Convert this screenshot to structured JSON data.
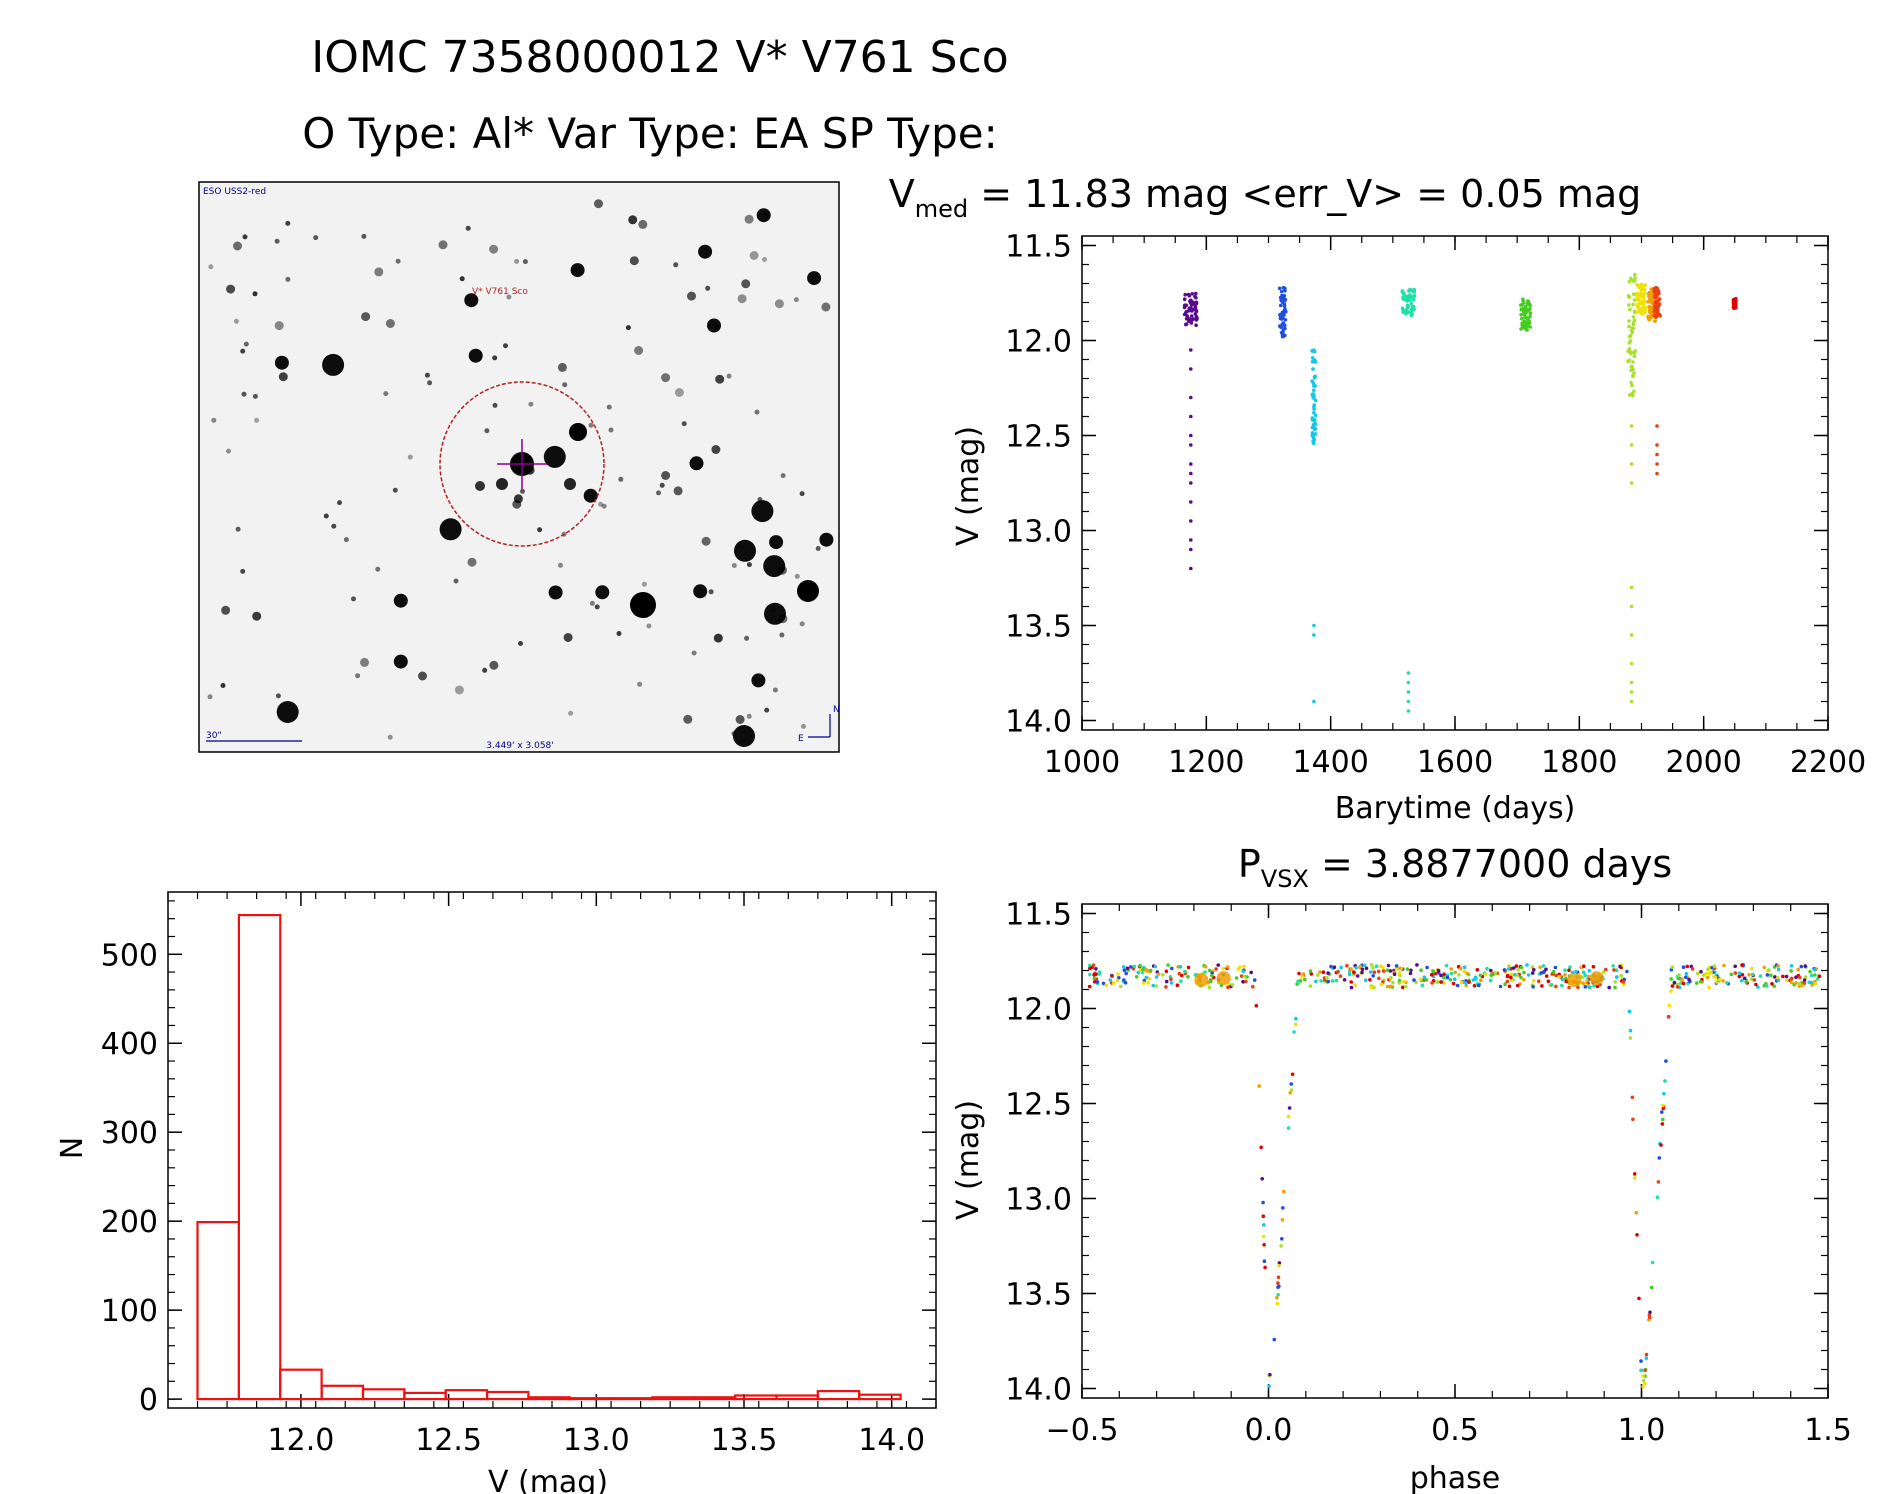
{
  "header": {
    "line1": "IOMC 7358000012   V* V761 Sco",
    "line2": "O Type: Al*  Var Type: EA  SP Type:"
  },
  "image_panel": {
    "survey_label": "ESO USS2-red",
    "target_label": "V* V761 Sco",
    "scale_label": "30\"",
    "fov_label": "3.449' x 3.058'",
    "north_label": "N",
    "east_label": "E",
    "colors": {
      "star": "#000000",
      "circle": "#b22222",
      "cross": "#8b008b",
      "annotation": "#00008b"
    }
  },
  "chart_data": [
    {
      "id": "light_curve",
      "type": "scatter",
      "title_main": "V",
      "title_sub": "med",
      "title_rest": " = 11.83 mag <err_V> = 0.05 mag",
      "xlabel": "Barytime (days)",
      "ylabel": "V (mag)",
      "xlim": [
        1000,
        2200
      ],
      "ylim": [
        14.05,
        11.45
      ],
      "xticks": [
        1000,
        1200,
        1400,
        1600,
        1800,
        2000,
        2200
      ],
      "yticks": [
        11.5,
        12.0,
        12.5,
        13.0,
        13.5,
        14.0
      ],
      "groups": [
        {
          "x": [
            1165,
            1185
          ],
          "ymin": 11.75,
          "ymax": 11.92,
          "faint": [
            12.05,
            12.15,
            12.3,
            12.4,
            12.5,
            12.55,
            12.65,
            12.7,
            12.75,
            12.85,
            12.95,
            13.05,
            13.1,
            13.2
          ],
          "color": "#5a0a8c"
        },
        {
          "x": [
            1318,
            1328
          ],
          "ymin": 11.72,
          "ymax": 11.98,
          "faint": [],
          "color": "#1f4fe0"
        },
        {
          "x": [
            1370,
            1376
          ],
          "ymin": 12.05,
          "ymax": 12.55,
          "faint": [
            13.5,
            13.55,
            13.9
          ],
          "color": "#12c8e8"
        },
        {
          "x": [
            1515,
            1535
          ],
          "ymin": 11.73,
          "ymax": 11.87,
          "faint": [
            13.75,
            13.8,
            13.85,
            13.9,
            13.95
          ],
          "color": "#1fe0a8"
        },
        {
          "x": [
            1705,
            1722
          ],
          "ymin": 11.78,
          "ymax": 11.95,
          "faint": [],
          "color": "#44cc22"
        },
        {
          "x": [
            1878,
            1890
          ],
          "ymin": 11.65,
          "ymax": 12.3,
          "faint": [
            12.45,
            12.55,
            12.65,
            12.75,
            13.3,
            13.4,
            13.55,
            13.7,
            13.8,
            13.85,
            13.9
          ],
          "color": "#a6e22a"
        },
        {
          "x": [
            1892,
            1908
          ],
          "ymin": 11.7,
          "ymax": 11.88,
          "faint": [],
          "color": "#f2e000"
        },
        {
          "x": [
            1910,
            1922
          ],
          "ymin": 11.72,
          "ymax": 11.9,
          "faint": [],
          "color": "#f0a000"
        },
        {
          "x": [
            1920,
            1930
          ],
          "ymin": 11.72,
          "ymax": 11.88,
          "faint": [
            12.45,
            12.55,
            12.6,
            12.65,
            12.7
          ],
          "color": "#e84010"
        },
        {
          "x": [
            2048,
            2052
          ],
          "ymin": 11.78,
          "ymax": 11.83,
          "faint": [],
          "color": "#e00000"
        }
      ]
    },
    {
      "id": "histogram",
      "type": "bar",
      "xlabel": "V (mag)",
      "ylabel": "N",
      "xlim": [
        11.55,
        14.15
      ],
      "ylim": [
        -10,
        570
      ],
      "xticks": [
        12.0,
        12.5,
        13.0,
        13.5,
        14.0
      ],
      "yticks": [
        0,
        100,
        200,
        300,
        400,
        500
      ],
      "bin_edges": [
        11.65,
        11.79,
        11.93,
        12.07,
        12.21,
        12.35,
        12.49,
        12.63,
        12.77,
        12.91,
        13.05,
        13.19,
        13.33,
        13.47,
        13.61,
        13.75,
        13.89,
        14.03
      ],
      "counts": [
        199,
        544,
        33,
        15,
        11,
        7,
        10,
        8,
        2,
        1,
        1,
        2,
        2,
        4,
        4,
        9,
        5
      ],
      "color": "#ee1111"
    },
    {
      "id": "phase_curve",
      "type": "scatter",
      "title_main": "P",
      "title_sub": "VSX",
      "title_rest": " = 3.8877000 days",
      "xlabel": "phase",
      "ylabel": "V (mag)",
      "xlim": [
        -0.5,
        1.5
      ],
      "ylim": [
        14.05,
        11.45
      ],
      "xticks": [
        -0.5,
        0.0,
        0.5,
        1.0,
        1.5
      ],
      "yticks": [
        11.5,
        12.0,
        12.5,
        13.0,
        13.5,
        14.0
      ],
      "palette": [
        "#5a0a8c",
        "#1f4fe0",
        "#12c8e8",
        "#1fe0a8",
        "#44cc22",
        "#a6e22a",
        "#f2e000",
        "#f0a000",
        "#e84010",
        "#e00000"
      ],
      "baseline_mag": 11.83,
      "eclipse_phase": 0.0,
      "eclipse_depth_mag": 13.95
    }
  ]
}
